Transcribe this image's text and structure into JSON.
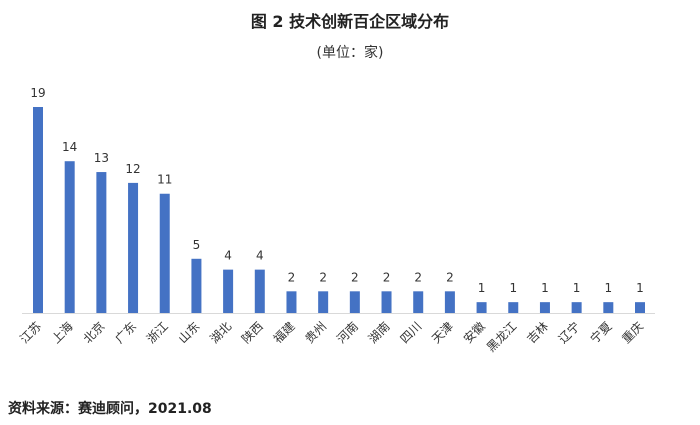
{
  "chart_data": {
    "type": "bar",
    "title": "图 2  技术创新百企区域分布",
    "subtitle": "(单位：家)",
    "categories": [
      "江苏",
      "上海",
      "北京",
      "广东",
      "浙江",
      "山东",
      "湖北",
      "陕西",
      "福建",
      "贵州",
      "河南",
      "湖南",
      "四川",
      "天津",
      "安徽",
      "黑龙江",
      "吉林",
      "辽宁",
      "宁夏",
      "重庆"
    ],
    "values": [
      19,
      14,
      13,
      12,
      11,
      5,
      4,
      4,
      2,
      2,
      2,
      2,
      2,
      2,
      1,
      1,
      1,
      1,
      1,
      1
    ],
    "ylim": [
      0,
      19
    ],
    "xlabel": "",
    "ylabel": "",
    "grid": false,
    "bar_color": "#4472C4",
    "source": "资料来源：赛迪顾问，2021.08"
  }
}
